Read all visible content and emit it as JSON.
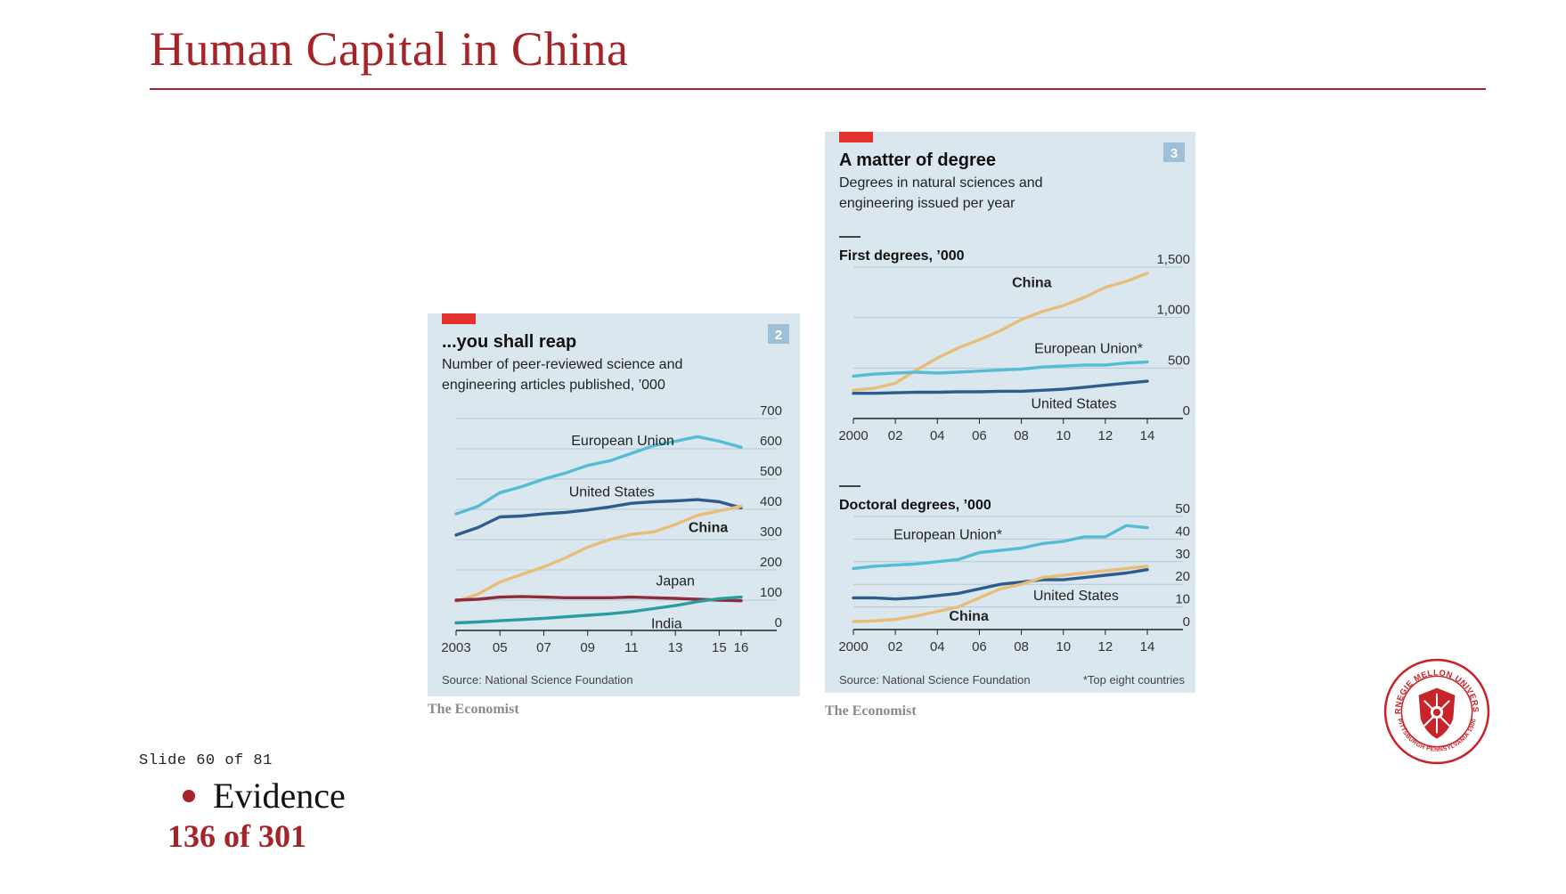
{
  "slide": {
    "title": "Human Capital in China",
    "slide_counter": "Slide 60 of 81",
    "bullet": "Evidence",
    "page_counter": "136 of 301"
  },
  "theme": {
    "accent": "#a5242a",
    "panel_bg": "#dbe7ef",
    "economist_red": "#e3322c",
    "series_colors": {
      "European Union": "#54bcd4",
      "United States": "#2d5d8e",
      "China": "#e8bd78",
      "Japan": "#8e2c3c",
      "India": "#2b9da0"
    }
  },
  "logo": {
    "name": "CARNEGIE MELLON UNIVERSITY",
    "ring_text": "PITTSBURGH PENNSYLVANIA 1900"
  },
  "chart_data": [
    {
      "type": "line",
      "badge": "2",
      "title": "...you shall reap",
      "subtitle_lines": [
        "Number of peer-reviewed science and",
        "engineering articles published, ’000"
      ],
      "source": "Source: National Science Foundation",
      "credit": "The Economist",
      "grid": true,
      "ylim": [
        0,
        700
      ],
      "yticks": [
        "0",
        "100",
        "200",
        "300",
        "400",
        "500",
        "600",
        "700"
      ],
      "xticks": [
        {
          "label": "2003",
          "x": 2003
        },
        {
          "label": "05",
          "x": 2005
        },
        {
          "label": "07",
          "x": 2007
        },
        {
          "label": "09",
          "x": 2009
        },
        {
          "label": "11",
          "x": 2011
        },
        {
          "label": "13",
          "x": 2013
        },
        {
          "label": "15",
          "x": 2015
        },
        {
          "label": "16",
          "x": 2016
        }
      ],
      "x": [
        2003,
        2004,
        2005,
        2006,
        2007,
        2008,
        2009,
        2010,
        2011,
        2012,
        2013,
        2014,
        2015,
        2016
      ],
      "series": [
        {
          "name": "European Union",
          "bold": false,
          "label_at": [
            2010.6,
            612
          ],
          "values": [
            385,
            410,
            455,
            475,
            500,
            520,
            545,
            560,
            585,
            610,
            625,
            640,
            625,
            605
          ]
        },
        {
          "name": "United States",
          "bold": false,
          "label_at": [
            2010.1,
            442
          ],
          "values": [
            315,
            340,
            375,
            378,
            385,
            390,
            398,
            408,
            420,
            425,
            428,
            432,
            425,
            405
          ]
        },
        {
          "name": "China",
          "bold": true,
          "label_at": [
            2014.5,
            325
          ],
          "values": [
            95,
            120,
            160,
            185,
            210,
            240,
            275,
            300,
            318,
            325,
            350,
            380,
            395,
            410
          ]
        },
        {
          "name": "Japan",
          "bold": false,
          "label_at": [
            2013.0,
            148
          ],
          "values": [
            100,
            103,
            110,
            112,
            110,
            108,
            108,
            108,
            110,
            108,
            106,
            103,
            100,
            98
          ]
        },
        {
          "name": "India",
          "bold": false,
          "label_at": [
            2012.6,
            7
          ],
          "values": [
            25,
            28,
            32,
            36,
            40,
            45,
            50,
            55,
            62,
            72,
            82,
            95,
            105,
            110
          ]
        }
      ]
    },
    {
      "type": "line",
      "badge": "3",
      "title": "A matter of degree",
      "subtitle_lines": [
        "Degrees in natural sciences and",
        "engineering issued per year"
      ],
      "source": "Source: National Science Foundation",
      "footnote": "*Top eight countries",
      "credit": "The Economist",
      "grid": true,
      "panels": [
        {
          "title": "First degrees, ’000",
          "ylim": [
            0,
            1500
          ],
          "yticks": [
            "0",
            "500",
            "1,000",
            "1,500"
          ],
          "xticks": [
            "2000",
            "02",
            "04",
            "06",
            "08",
            "10",
            "12",
            "14"
          ],
          "x": [
            2000,
            2001,
            2002,
            2003,
            2004,
            2005,
            2006,
            2007,
            2008,
            2009,
            2010,
            2011,
            2012,
            2013,
            2014
          ],
          "series": [
            {
              "name": "China",
              "bold": true,
              "label_at": [
                2008.5,
                1300
              ],
              "values": [
                280,
                300,
                350,
                480,
                600,
                700,
                780,
                870,
                980,
                1060,
                1120,
                1200,
                1300,
                1360,
                1440
              ]
            },
            {
              "name": "European Union*",
              "bold": false,
              "label_at": [
                2011.2,
                650
              ],
              "values": [
                420,
                440,
                450,
                460,
                450,
                460,
                470,
                480,
                490,
                510,
                520,
                530,
                530,
                550,
                560
              ]
            },
            {
              "name": "United States",
              "bold": false,
              "label_at": [
                2010.5,
                100
              ],
              "values": [
                250,
                250,
                255,
                260,
                260,
                265,
                265,
                270,
                270,
                280,
                290,
                310,
                330,
                350,
                370
              ]
            }
          ]
        },
        {
          "title": "Doctoral degrees, ’000",
          "ylim": [
            0,
            50
          ],
          "yticks": [
            "0",
            "10",
            "20",
            "30",
            "40",
            "50"
          ],
          "xticks": [
            "2000",
            "02",
            "04",
            "06",
            "08",
            "10",
            "12",
            "14"
          ],
          "x": [
            2000,
            2001,
            2002,
            2003,
            2004,
            2005,
            2006,
            2007,
            2008,
            2009,
            2010,
            2011,
            2012,
            2013,
            2014
          ],
          "series": [
            {
              "name": "European Union*",
              "bold": false,
              "label_at": [
                2004.5,
                40
              ],
              "values": [
                27,
                28,
                28.5,
                29,
                30,
                31,
                34,
                35,
                36,
                38,
                39,
                41,
                41,
                46,
                45
              ]
            },
            {
              "name": "United States",
              "bold": false,
              "label_at": [
                2010.6,
                13
              ],
              "values": [
                14,
                14,
                13.5,
                14,
                15,
                16,
                18,
                20,
                21,
                22,
                22,
                23,
                24,
                25,
                26.5
              ]
            },
            {
              "name": "China",
              "bold": true,
              "label_at": [
                2005.5,
                4
              ],
              "values": [
                3.5,
                3.8,
                4.5,
                6,
                8,
                10,
                14,
                18,
                20,
                23,
                24,
                25,
                26,
                27,
                28
              ]
            }
          ]
        }
      ]
    }
  ]
}
